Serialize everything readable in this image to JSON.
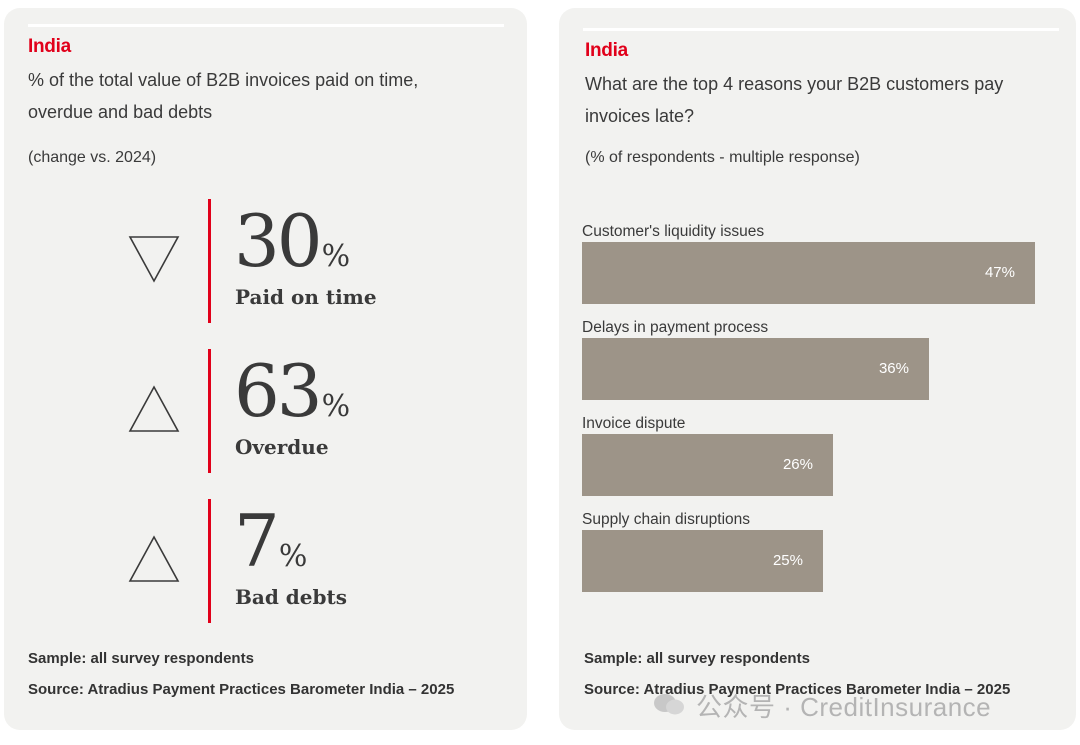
{
  "left": {
    "country": "India",
    "title_line1": "% of the total value of B2B invoices paid on time,",
    "title_line2": "overdue and bad debts",
    "note": "(change vs. 2024)",
    "kpis": [
      {
        "value": "30",
        "unit": "%",
        "label": "Paid on time",
        "change": "down"
      },
      {
        "value": "63",
        "unit": "%",
        "label": "Overdue",
        "change": "up"
      },
      {
        "value": "7",
        "unit": "%",
        "label": "Bad debts",
        "change": "up"
      }
    ],
    "sample": "Sample: all survey respondents",
    "source": "Source: Atradius Payment Practices Barometer India – 2025"
  },
  "right": {
    "country": "India",
    "title_line1": "What are the top 4 reasons your B2B customers pay",
    "title_line2": "invoices late?",
    "note": "(% of respondents - multiple response)",
    "sample": "Sample: all survey respondents",
    "source": "Source: Atradius Payment Practices Barometer India – 2025"
  },
  "chart_data": {
    "type": "bar",
    "orientation": "horizontal",
    "categories": [
      "Customer's liquidity issues",
      "Delays in payment process",
      "Invoice dispute",
      "Supply chain disruptions"
    ],
    "values": [
      47,
      36,
      26,
      25
    ],
    "value_labels": [
      "47%",
      "36%",
      "26%",
      "25%"
    ],
    "unit": "%",
    "bar_color": "#9d9488",
    "grid": false
  },
  "colors": {
    "accent": "#e1001a",
    "panel": "#f2f2f0",
    "bar": "#9d9488"
  },
  "watermark": "公众号 · CreditInsurance"
}
